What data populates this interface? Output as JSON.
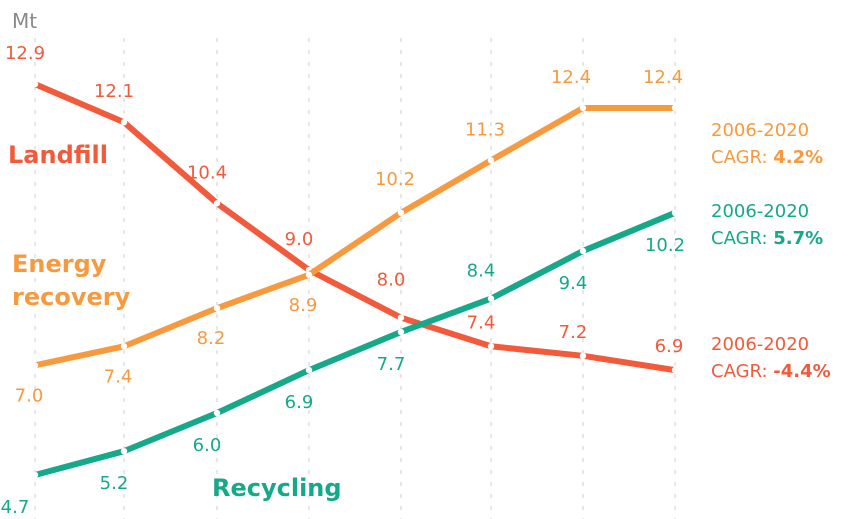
{
  "chart_data": {
    "type": "line",
    "y_unit": "Mt",
    "ylim": [
      4.5,
      13.0
    ],
    "x": [
      0,
      1,
      2,
      3,
      4,
      5,
      6,
      7
    ],
    "grid": "vertical dashed",
    "series": [
      {
        "name": "Landfill",
        "color": "#f15a3a",
        "values": [
          12.9,
          12.1,
          10.4,
          9.0,
          8.0,
          7.4,
          7.2,
          6.9
        ],
        "labels": [
          "12.9",
          "12.1",
          "10.4",
          "9.0",
          "8.0",
          "7.4",
          "7.2",
          "6.9"
        ],
        "cagr": {
          "period": "2006-2020",
          "prefix": "CAGR:",
          "value": "-4.4%"
        }
      },
      {
        "name": "Energy recovery",
        "color": "#f79a3f",
        "values": [
          7.0,
          7.4,
          8.2,
          8.9,
          10.2,
          11.3,
          12.4,
          12.4
        ],
        "labels": [
          "7.0",
          "7.4",
          "8.2",
          "8.9",
          "10.2",
          "11.3",
          "12.4",
          "12.4"
        ],
        "cagr": {
          "period": "2006-2020",
          "prefix": "CAGR:",
          "value": "4.2%"
        }
      },
      {
        "name": "Recycling",
        "color": "#15a98a",
        "values": [
          4.7,
          5.2,
          6.0,
          6.9,
          7.7,
          8.4,
          9.4,
          10.2
        ],
        "labels": [
          "4.7",
          "5.2",
          "6.0",
          "6.9",
          "7.7",
          "8.4",
          "9.4",
          "10.2"
        ],
        "cagr": {
          "period": "2006-2020",
          "prefix": "CAGR:",
          "value": "5.7%"
        }
      }
    ],
    "series_titles": {
      "landfill": "Landfill",
      "energy_line1": "Energy",
      "energy_line2": "recovery",
      "recycling": "Recycling"
    }
  }
}
